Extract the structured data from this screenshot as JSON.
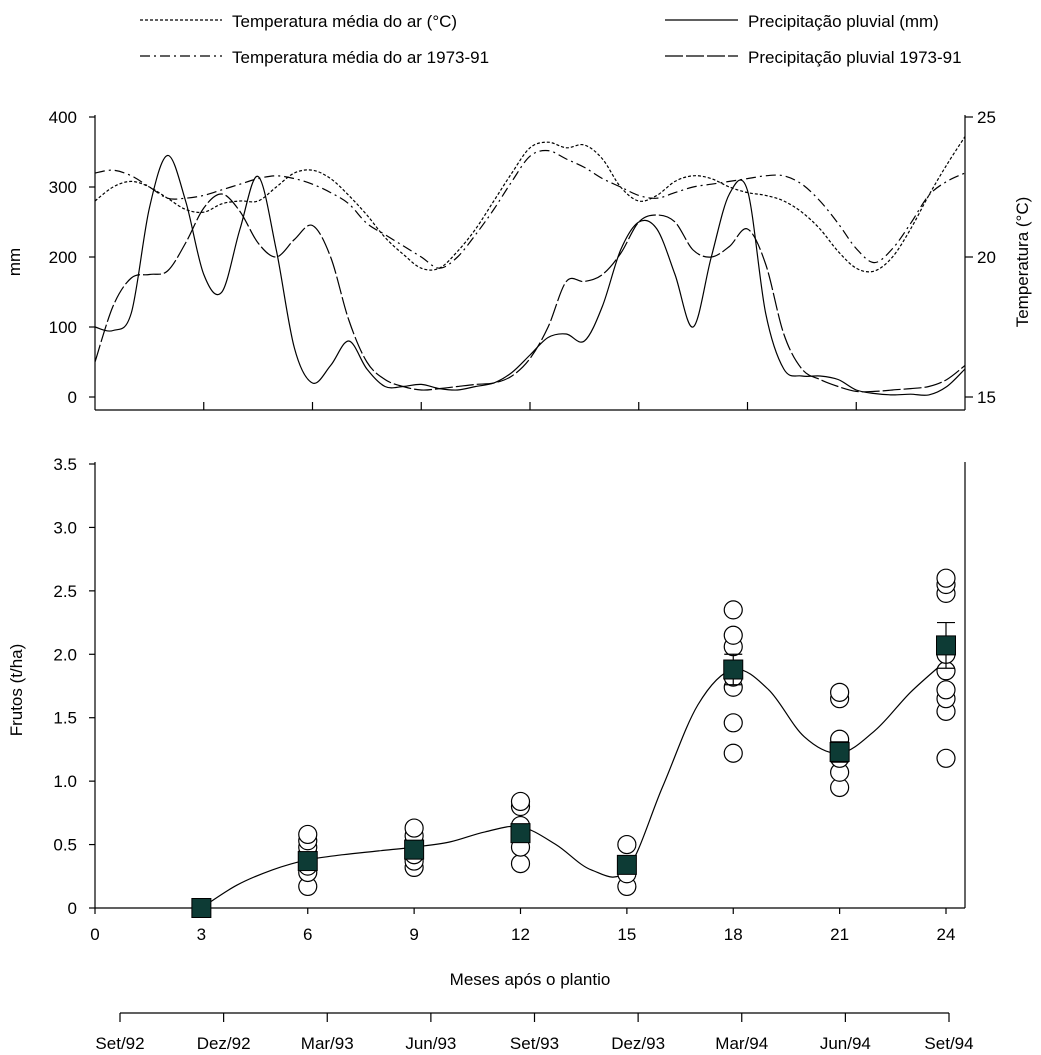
{
  "legend": {
    "items": [
      {
        "label": "Temperatura média do ar (°C)",
        "style": "dotted",
        "key": "temp"
      },
      {
        "label": "Precipitação pluvial (mm)",
        "style": "solid",
        "key": "prec"
      },
      {
        "label": "Temperatura média do ar 1973-91",
        "style": "dashdot",
        "key": "temp_hist"
      },
      {
        "label": "Precipitação pluvial 1973-91",
        "style": "longdash",
        "key": "prec_hist"
      }
    ]
  },
  "chart_data": [
    {
      "type": "line",
      "ylabel_left": "mm",
      "ylabel_right": "Temperatura (°C)",
      "x_range": [
        0,
        24
      ],
      "y_left_range": [
        0,
        400
      ],
      "y_left_ticks": [
        "400",
        "300",
        "200",
        "100",
        "0"
      ],
      "y_left_values": [
        400,
        300,
        200,
        100,
        0
      ],
      "y_right_range": [
        15,
        25
      ],
      "y_right_ticks": [
        "25",
        "20",
        "15"
      ],
      "y_right_values": [
        25,
        20,
        15
      ],
      "x_tick_positions": [
        3,
        6,
        9,
        12,
        15,
        18,
        21
      ],
      "series": [
        {
          "name": "Precipitação pluvial (mm)",
          "axis": "left",
          "x": [
            0,
            0.5,
            1,
            1.5,
            2,
            2.5,
            3,
            3.5,
            4,
            4.5,
            5,
            5.5,
            6,
            6.5,
            7,
            7.5,
            8,
            8.5,
            9,
            9.5,
            10,
            10.5,
            11,
            11.5,
            12,
            12.5,
            13,
            13.5,
            14,
            14.5,
            15,
            15.5,
            16,
            16.5,
            17,
            17.5,
            18,
            18.5,
            19,
            19.5,
            20,
            20.5,
            21,
            21.5,
            22,
            22.5,
            23,
            23.5,
            24
          ],
          "values": [
            100,
            95,
            120,
            270,
            345,
            280,
            175,
            150,
            240,
            315,
            210,
            70,
            20,
            45,
            80,
            40,
            15,
            15,
            18,
            12,
            10,
            15,
            20,
            35,
            60,
            85,
            90,
            80,
            130,
            210,
            250,
            240,
            175,
            100,
            200,
            290,
            295,
            120,
            40,
            30,
            30,
            25,
            10,
            5,
            3,
            4,
            3,
            15,
            40
          ]
        },
        {
          "name": "Precipitação pluvial 1973-91",
          "axis": "left",
          "x": [
            0,
            0.5,
            1,
            1.5,
            2,
            2.5,
            3,
            3.5,
            4,
            4.5,
            5,
            5.5,
            6,
            6.5,
            7,
            7.5,
            8,
            8.5,
            9,
            9.5,
            10,
            10.5,
            11,
            11.5,
            12,
            12.5,
            13,
            13.5,
            14,
            14.5,
            15,
            15.5,
            16,
            16.5,
            17,
            17.5,
            18,
            18.5,
            19,
            19.5,
            20,
            20.5,
            21,
            21.5,
            22,
            22.5,
            23,
            23.5,
            24
          ],
          "values": [
            50,
            130,
            170,
            175,
            180,
            220,
            270,
            290,
            265,
            220,
            200,
            225,
            245,
            200,
            110,
            50,
            25,
            15,
            10,
            12,
            15,
            18,
            20,
            30,
            55,
            100,
            165,
            165,
            175,
            205,
            250,
            260,
            250,
            210,
            200,
            215,
            240,
            190,
            90,
            40,
            25,
            15,
            8,
            8,
            10,
            12,
            15,
            25,
            45
          ]
        },
        {
          "name": "Temperatura média do ar (°C)",
          "axis": "right",
          "x": [
            0,
            0.5,
            1,
            1.5,
            2,
            2.5,
            3,
            3.5,
            4,
            4.5,
            5,
            5.5,
            6,
            6.5,
            7,
            7.5,
            8,
            8.5,
            9,
            9.5,
            10,
            10.5,
            11,
            11.5,
            12,
            12.5,
            13,
            13.5,
            14,
            14.5,
            15,
            15.5,
            16,
            16.5,
            17,
            17.5,
            18,
            18.5,
            19,
            19.5,
            20,
            20.5,
            21,
            21.5,
            22,
            22.5,
            23,
            23.5,
            24
          ],
          "values": [
            22.0,
            22.5,
            22.7,
            22.5,
            22.1,
            21.7,
            21.6,
            21.9,
            22.0,
            22.0,
            22.5,
            23.0,
            23.1,
            22.8,
            22.2,
            21.5,
            20.7,
            20.1,
            19.6,
            19.6,
            20.2,
            21.0,
            22.0,
            23.0,
            23.9,
            24.1,
            23.9,
            24.0,
            23.5,
            22.5,
            22.0,
            22.2,
            22.7,
            22.9,
            22.8,
            22.5,
            22.3,
            22.2,
            22.0,
            21.6,
            21.0,
            20.2,
            19.6,
            19.5,
            20.0,
            21.0,
            22.2,
            23.3,
            24.3
          ]
        },
        {
          "name": "Temperatura média do ar 1973-91",
          "axis": "right",
          "x": [
            0,
            0.5,
            1,
            1.5,
            2,
            2.5,
            3,
            3.5,
            4,
            4.5,
            5,
            5.5,
            6,
            6.5,
            7,
            7.5,
            8,
            8.5,
            9,
            9.5,
            10,
            10.5,
            11,
            11.5,
            12,
            12.5,
            13,
            13.5,
            14,
            14.5,
            15,
            15.5,
            16,
            16.5,
            17,
            17.5,
            18,
            18.5,
            19,
            19.5,
            20,
            20.5,
            21,
            21.5,
            22,
            22.5,
            23,
            23.5,
            24
          ],
          "values": [
            23.0,
            23.1,
            22.9,
            22.5,
            22.1,
            22.1,
            22.2,
            22.4,
            22.6,
            22.8,
            22.9,
            22.8,
            22.6,
            22.3,
            21.9,
            21.2,
            20.8,
            20.4,
            20.0,
            19.6,
            20.0,
            20.8,
            21.7,
            22.7,
            23.6,
            23.8,
            23.5,
            23.2,
            22.8,
            22.5,
            22.2,
            22.1,
            22.3,
            22.5,
            22.6,
            22.7,
            22.8,
            22.9,
            22.9,
            22.6,
            22.0,
            21.2,
            20.3,
            19.8,
            20.3,
            21.2,
            22.2,
            22.7,
            23.0
          ]
        }
      ]
    },
    {
      "type": "scatter",
      "xlabel": "Meses após o plantio",
      "ylabel": "Frutos (t/ha)",
      "x_range": [
        0,
        24
      ],
      "y_range": [
        0,
        3.5
      ],
      "x_ticks": [
        "0",
        "3",
        "6",
        "9",
        "12",
        "15",
        "18",
        "21",
        "24"
      ],
      "x_tick_values": [
        0,
        3,
        6,
        9,
        12,
        15,
        18,
        21,
        24
      ],
      "y_ticks": [
        "3.5",
        "3.0",
        "2.5",
        "2.0",
        "1.5",
        "1.0",
        "0.5",
        "0"
      ],
      "y_tick_values": [
        3.5,
        3.0,
        2.5,
        2.0,
        1.5,
        1.0,
        0.5,
        0
      ],
      "means": {
        "x": [
          3,
          6,
          9,
          12,
          15,
          18,
          21,
          24
        ],
        "values": [
          0,
          0.37,
          0.46,
          0.59,
          0.34,
          1.88,
          1.23,
          2.07
        ],
        "error": [
          0,
          0.04,
          0.05,
          0.06,
          0.04,
          0.12,
          0.08,
          0.18
        ]
      },
      "observations": [
        {
          "x": 6,
          "values": [
            0.17,
            0.28,
            0.33,
            0.38,
            0.43,
            0.48,
            0.53,
            0.58
          ]
        },
        {
          "x": 9,
          "values": [
            0.32,
            0.37,
            0.42,
            0.47,
            0.52,
            0.57,
            0.63
          ]
        },
        {
          "x": 12,
          "values": [
            0.35,
            0.48,
            0.6,
            0.65,
            0.8,
            0.84
          ]
        },
        {
          "x": 15,
          "values": [
            0.17,
            0.27,
            0.5
          ]
        },
        {
          "x": 18,
          "values": [
            1.22,
            1.46,
            1.74,
            1.82,
            2.06,
            2.15,
            2.35
          ]
        },
        {
          "x": 21,
          "values": [
            0.95,
            1.07,
            1.18,
            1.25,
            1.3,
            1.33,
            1.65,
            1.7
          ]
        },
        {
          "x": 24,
          "values": [
            1.18,
            1.55,
            1.65,
            1.72,
            1.87,
            2.0,
            2.48,
            2.55,
            2.6
          ]
        }
      ],
      "fit_curve": {
        "x": [
          3,
          4,
          5,
          6,
          7,
          8,
          9,
          10,
          11,
          12,
          13,
          14,
          15,
          16,
          17,
          18,
          19,
          20,
          21,
          22,
          23,
          24
        ],
        "values": [
          0,
          0.18,
          0.3,
          0.38,
          0.42,
          0.45,
          0.48,
          0.52,
          0.6,
          0.64,
          0.5,
          0.3,
          0.3,
          0.95,
          1.6,
          1.88,
          1.72,
          1.35,
          1.22,
          1.4,
          1.7,
          1.95
        ]
      }
    }
  ],
  "date_axis": {
    "labels": [
      "Set/92",
      "Dez/92",
      "Mar/93",
      "Jun/93",
      "Set/93",
      "Dez/93",
      "Mar/94",
      "Jun/94",
      "Set/94"
    ],
    "month_offsets": [
      0,
      3,
      6,
      9,
      12,
      15,
      18,
      21,
      24
    ]
  }
}
